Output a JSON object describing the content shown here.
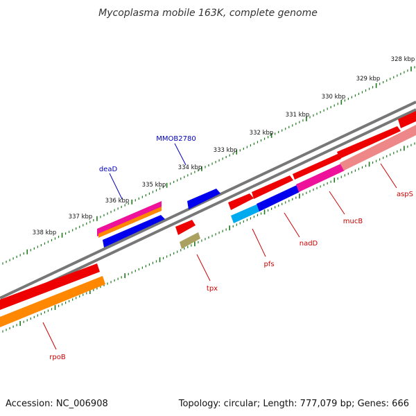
{
  "title": "Mycoplasma mobile 163K, complete genome",
  "footer": {
    "accession": "Accession: NC_006908",
    "summary": "Topology: circular; Length: 777,079 bp; Genes: 666"
  },
  "colors": {
    "tick_green": "#1a7a1a",
    "backbone_gray": "#777777",
    "gene_red": "#ee0000",
    "gene_blue": "#0000ee",
    "gene_magenta": "#ee1199",
    "gene_orange": "#ff8800",
    "gene_cyan": "#00aaee",
    "gene_pink": "#ee8888",
    "gene_olive": "#aaa060",
    "label_blue": "#0000bb",
    "label_red": "#cc0000"
  },
  "scale_labels": [
    "328 kbp",
    "329 kbp",
    "330 kbp",
    "331 kbp",
    "332 kbp",
    "333 kbp",
    "334 kbp",
    "335 kbp",
    "336 kbp",
    "337 kbp",
    "338 kbp"
  ],
  "gene_labels": [
    {
      "text": "MMOB2780",
      "color": "blue"
    },
    {
      "text": "deaD",
      "color": "blue"
    },
    {
      "text": "aspS",
      "color": "red"
    },
    {
      "text": "mucB",
      "color": "red"
    },
    {
      "text": "nadD",
      "color": "red"
    },
    {
      "text": "pfs",
      "color": "red"
    },
    {
      "text": "tpx",
      "color": "red"
    },
    {
      "text": "rpoB",
      "color": "red"
    }
  ]
}
